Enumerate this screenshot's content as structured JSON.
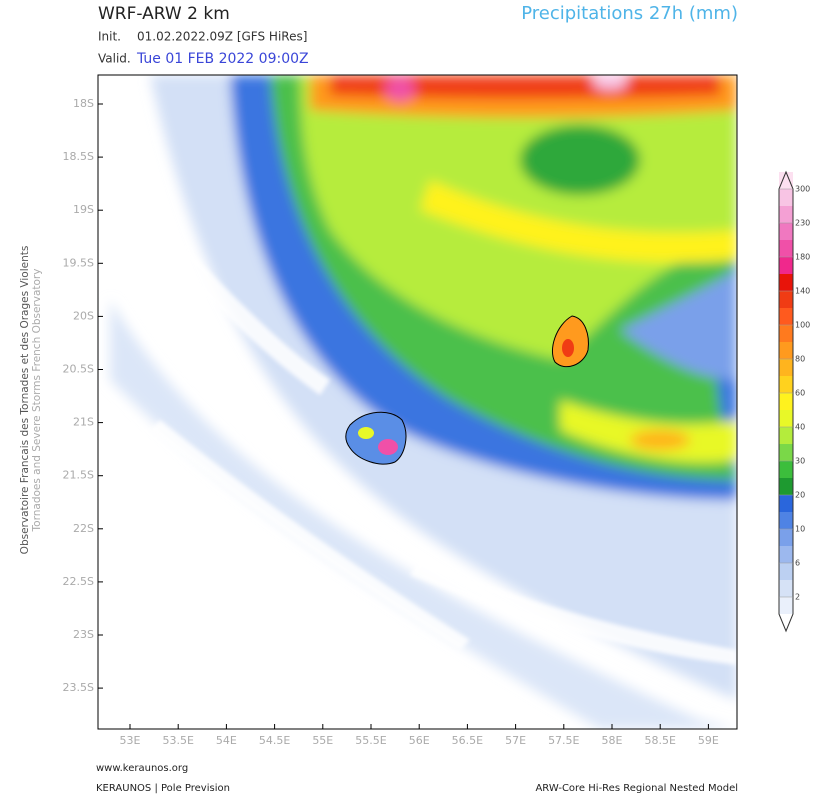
{
  "header": {
    "model": "WRF-ARW 2 km",
    "product": "Precipitations 27h (mm)",
    "init_label": "Init.",
    "init": "01.02.2022.09Z [GFS HiRes]",
    "valid_label": "Valid.",
    "valid": "Tue 01 FEB 2022 09:00Z"
  },
  "side": {
    "line1": "Observatoire Francais des Tornades et des Orages Violents",
    "line2": "Tornadoes and Severe Storms French Observatory"
  },
  "map": {
    "lat_labels": [
      "18S",
      "18.5S",
      "19S",
      "19.5S",
      "20S",
      "20.5S",
      "21S",
      "21.5S",
      "22S",
      "22.5S",
      "23S",
      "23.5S"
    ],
    "lon_labels": [
      "53E",
      "53.5E",
      "54E",
      "54.5E",
      "55E",
      "55.5E",
      "56E",
      "56.5E",
      "57E",
      "57.5E",
      "58E",
      "58.5E",
      "59E"
    ]
  },
  "colorbar": {
    "levels": [
      2,
      6,
      10,
      20,
      30,
      40,
      60,
      80,
      100,
      140,
      180,
      230,
      300
    ],
    "colors": [
      "#ffffff",
      "#eaf0fb",
      "#d6e2f6",
      "#bcd0f2",
      "#9cb8ee",
      "#7aa0ea",
      "#4f83e4",
      "#2a66dc",
      "#1e9a30",
      "#3cbe3c",
      "#7ad848",
      "#b4ec3c",
      "#e8f828",
      "#fff21e",
      "#ffd21e",
      "#ffb41e",
      "#ff9a1e",
      "#ff7a1e",
      "#ff5a1e",
      "#f03c14",
      "#e8140a",
      "#f0288c",
      "#f050a8",
      "#f078c0",
      "#f4a0d4",
      "#f8c4e4",
      "#fce0f0"
    ]
  },
  "footer": {
    "site": "www.keraunos.org",
    "org": "KERAUNOS | Pole Prevision",
    "model": "ARW-Core Hi-Res Regional Nested Model"
  }
}
